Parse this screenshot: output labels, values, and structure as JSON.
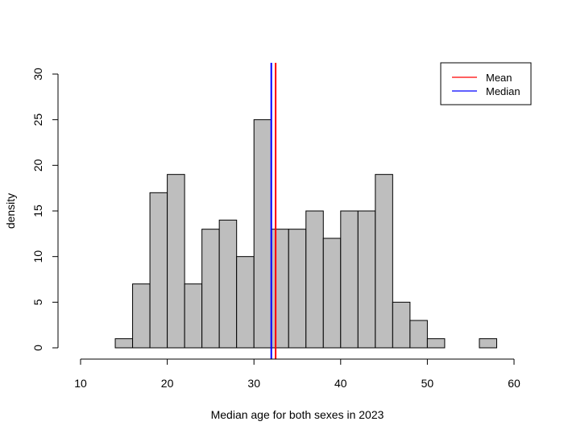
{
  "chart_data": {
    "type": "bar",
    "xlabel": "Median age for both sexes in 2023",
    "ylabel": "density",
    "xlim": [
      10,
      60
    ],
    "ylim": [
      0,
      30
    ],
    "x_ticks": [
      10,
      20,
      30,
      40,
      50,
      60
    ],
    "y_ticks": [
      0,
      5,
      10,
      15,
      20,
      25,
      30
    ],
    "bin_width": 2,
    "bins": [
      {
        "x0": 14,
        "x1": 16,
        "value": 1
      },
      {
        "x0": 16,
        "x1": 18,
        "value": 7
      },
      {
        "x0": 18,
        "x1": 20,
        "value": 17
      },
      {
        "x0": 20,
        "x1": 22,
        "value": 19
      },
      {
        "x0": 22,
        "x1": 24,
        "value": 7
      },
      {
        "x0": 24,
        "x1": 26,
        "value": 13
      },
      {
        "x0": 26,
        "x1": 28,
        "value": 14
      },
      {
        "x0": 28,
        "x1": 30,
        "value": 10
      },
      {
        "x0": 30,
        "x1": 32,
        "value": 25
      },
      {
        "x0": 32,
        "x1": 34,
        "value": 13
      },
      {
        "x0": 34,
        "x1": 36,
        "value": 13
      },
      {
        "x0": 36,
        "x1": 38,
        "value": 15
      },
      {
        "x0": 38,
        "x1": 40,
        "value": 12
      },
      {
        "x0": 40,
        "x1": 42,
        "value": 15
      },
      {
        "x0": 42,
        "x1": 44,
        "value": 15
      },
      {
        "x0": 44,
        "x1": 46,
        "value": 19
      },
      {
        "x0": 46,
        "x1": 48,
        "value": 5
      },
      {
        "x0": 48,
        "x1": 50,
        "value": 3
      },
      {
        "x0": 50,
        "x1": 52,
        "value": 1
      },
      {
        "x0": 52,
        "x1": 54,
        "value": 0
      },
      {
        "x0": 54,
        "x1": 56,
        "value": 0
      },
      {
        "x0": 56,
        "x1": 58,
        "value": 1
      }
    ],
    "vlines": [
      {
        "name": "Mean",
        "x": 32.5,
        "color": "#FF0000"
      },
      {
        "name": "Median",
        "x": 32.0,
        "color": "#0000FF"
      }
    ],
    "legend": {
      "placement": "top-right",
      "entries": [
        {
          "label": "Mean",
          "color": "#FF0000"
        },
        {
          "label": "Median",
          "color": "#0000FF"
        }
      ]
    },
    "bar_fill": "#BEBEBE",
    "bar_stroke": "#000000"
  }
}
